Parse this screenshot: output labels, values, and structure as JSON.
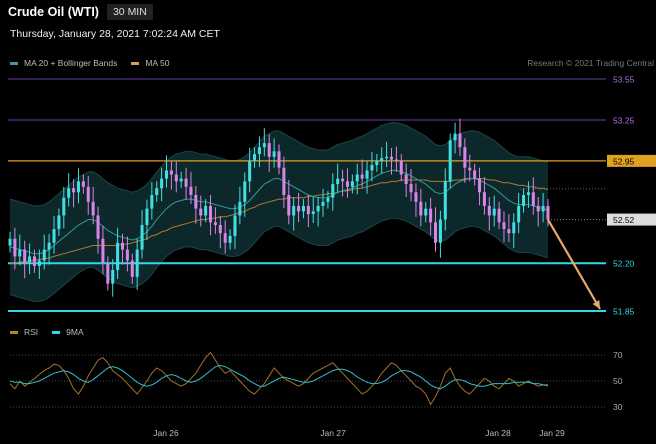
{
  "header": {
    "title": "Crude Oil (WTI)",
    "timeframe": "30 MIN",
    "datetime": "Thursday, January 28, 2021 7:02:24 AM CET"
  },
  "legend_top": [
    {
      "label": "MA 20 + Bollinger Bands",
      "color": "#3a9ea0"
    },
    {
      "label": "MA 50",
      "color": "#d99a52"
    }
  ],
  "legend_bottom": [
    {
      "label": "RSI",
      "color": "#b8860b"
    },
    {
      "label": "9MA",
      "color": "#33d6e6"
    }
  ],
  "copyright": "Research © 2021 Trading Central",
  "colors": {
    "up": "#40e0e0",
    "down": "#d884e8",
    "resistance": "#6a3fa8",
    "ma50_level": "#e0a020",
    "support": "#30d8e8",
    "arrow": "#e8a868",
    "band_fill": "#0e2a2c",
    "ma20": "#2f9a9c",
    "ma50": "#b07838",
    "rsi": "#a0702a",
    "rsi9": "#33bcd0"
  },
  "chart_data": [
    {
      "type": "candlestick",
      "title": "Crude Oil (WTI)",
      "timeframe": "30 MIN",
      "ylim": [
        51.8,
        53.6
      ],
      "x_ticks": [
        "Jan 26",
        "Jan 27",
        "Jan 28",
        "Jan 29"
      ],
      "price_levels": [
        {
          "value": 53.55,
          "label": "53.55",
          "kind": "resistance"
        },
        {
          "value": 53.25,
          "label": "53.25",
          "kind": "resistance"
        },
        {
          "value": 52.95,
          "label": "52.95",
          "kind": "ma50_level"
        },
        {
          "value": 52.52,
          "label": "52.52",
          "kind": "last"
        },
        {
          "value": 52.2,
          "label": "52.20",
          "kind": "support"
        },
        {
          "value": 51.85,
          "label": "51.85",
          "kind": "support"
        }
      ],
      "forecast": {
        "from": 52.52,
        "to": 51.85
      },
      "closes": [
        52.38,
        52.25,
        52.3,
        52.2,
        52.25,
        52.18,
        52.22,
        52.3,
        52.35,
        52.45,
        52.55,
        52.68,
        52.75,
        52.72,
        52.8,
        52.76,
        52.65,
        52.55,
        52.38,
        52.2,
        52.05,
        52.15,
        52.35,
        52.3,
        52.22,
        52.1,
        52.3,
        52.48,
        52.6,
        52.7,
        52.75,
        52.82,
        52.88,
        52.85,
        52.8,
        52.82,
        52.76,
        52.7,
        52.6,
        52.55,
        52.62,
        52.5,
        52.48,
        52.42,
        52.35,
        52.4,
        52.55,
        52.65,
        52.8,
        52.95,
        53.0,
        53.05,
        53.08,
        52.98,
        53.02,
        52.9,
        52.7,
        52.55,
        52.62,
        52.58,
        52.62,
        52.56,
        52.58,
        52.62,
        52.65,
        52.68,
        52.78,
        52.82,
        52.8,
        52.76,
        52.8,
        52.85,
        52.82,
        52.88,
        52.92,
        52.95,
        52.97,
        52.98,
        52.96,
        52.95,
        52.85,
        52.78,
        52.72,
        52.65,
        52.55,
        52.6,
        52.5,
        52.35,
        52.52,
        52.8,
        53.1,
        53.15,
        53.05,
        52.9,
        52.88,
        52.82,
        52.72,
        52.62,
        52.55,
        52.6,
        52.5,
        52.45,
        52.42,
        52.5,
        52.62,
        52.7,
        52.72,
        52.62,
        52.58,
        52.62,
        52.52
      ],
      "ma20": [
        52.32,
        52.31,
        52.3,
        52.29,
        52.28,
        52.27,
        52.27,
        52.28,
        52.3,
        52.33,
        52.36,
        52.39,
        52.42,
        52.45,
        52.48,
        52.5,
        52.52,
        52.52,
        52.5,
        52.47,
        52.44,
        52.42,
        52.4,
        52.39,
        52.38,
        52.37,
        52.38,
        52.4,
        52.43,
        52.47,
        52.52,
        52.56,
        52.6,
        52.63,
        52.65,
        52.66,
        52.67,
        52.67,
        52.66,
        52.65,
        52.65,
        52.64,
        52.63,
        52.62,
        52.61,
        52.6,
        52.6,
        52.61,
        52.63,
        52.66,
        52.7,
        52.74,
        52.78,
        52.8,
        52.82,
        52.82,
        52.8,
        52.78,
        52.76,
        52.74,
        52.72,
        52.7,
        52.69,
        52.68,
        52.68,
        52.68,
        52.7,
        52.72,
        52.73,
        52.74,
        52.75,
        52.77,
        52.78,
        52.8,
        52.82,
        52.84,
        52.86,
        52.87,
        52.88,
        52.88,
        52.87,
        52.86,
        52.84,
        52.82,
        52.8,
        52.78,
        52.75,
        52.72,
        52.71,
        52.72,
        52.75,
        52.78,
        52.8,
        52.81,
        52.82,
        52.82,
        52.81,
        52.79,
        52.77,
        52.75,
        52.72,
        52.69,
        52.66,
        52.64,
        52.63,
        52.63,
        52.63,
        52.62,
        52.61,
        52.6,
        52.59
      ],
      "ma50": [
        52.2,
        52.2,
        52.21,
        52.21,
        52.22,
        52.22,
        52.23,
        52.23,
        52.24,
        52.25,
        52.26,
        52.27,
        52.28,
        52.29,
        52.3,
        52.31,
        52.32,
        52.33,
        52.33,
        52.33,
        52.33,
        52.33,
        52.33,
        52.34,
        52.34,
        52.35,
        52.36,
        52.37,
        52.38,
        52.4,
        52.41,
        52.43,
        52.44,
        52.46,
        52.47,
        52.48,
        52.49,
        52.5,
        52.51,
        52.52,
        52.52,
        52.53,
        52.53,
        52.54,
        52.54,
        52.55,
        52.56,
        52.57,
        52.58,
        52.6,
        52.61,
        52.63,
        52.64,
        52.65,
        52.66,
        52.67,
        52.67,
        52.68,
        52.68,
        52.68,
        52.68,
        52.69,
        52.69,
        52.7,
        52.7,
        52.71,
        52.71,
        52.72,
        52.73,
        52.73,
        52.74,
        52.75,
        52.75,
        52.76,
        52.77,
        52.78,
        52.79,
        52.79,
        52.8,
        52.8,
        52.81,
        52.81,
        52.81,
        52.81,
        52.81,
        52.81,
        52.8,
        52.8,
        52.8,
        52.8,
        52.8,
        52.81,
        52.81,
        52.82,
        52.82,
        52.82,
        52.82,
        52.82,
        52.81,
        52.81,
        52.8,
        52.79,
        52.79,
        52.78,
        52.77,
        52.77,
        52.76,
        52.76,
        52.75,
        52.75,
        52.74
      ],
      "band_width": 0.35
    },
    {
      "type": "line",
      "title": "RSI",
      "ylim": [
        20,
        80
      ],
      "y_ticks": [
        70,
        50,
        30
      ],
      "series": [
        {
          "name": "RSI",
          "values": [
            48,
            44,
            50,
            46,
            49,
            52,
            55,
            58,
            60,
            63,
            62,
            58,
            52,
            44,
            40,
            46,
            54,
            60,
            66,
            68,
            64,
            58,
            55,
            52,
            48,
            44,
            40,
            45,
            50,
            56,
            60,
            58,
            54,
            50,
            48,
            46,
            48,
            52,
            56,
            62,
            68,
            72,
            66,
            60,
            56,
            58,
            54,
            50,
            46,
            42,
            40,
            44,
            48,
            54,
            60,
            56,
            52,
            50,
            48,
            46,
            48,
            52,
            56,
            58,
            60,
            62,
            64,
            60,
            56,
            52,
            48,
            44,
            40,
            42,
            46,
            50,
            56,
            60,
            64,
            62,
            58,
            54,
            50,
            46,
            44,
            40,
            32,
            38,
            46,
            56,
            60,
            52,
            46,
            42,
            40,
            44,
            48,
            52,
            50,
            46,
            44,
            48,
            52,
            50,
            46,
            48,
            50,
            48,
            46,
            47,
            46
          ]
        },
        {
          "name": "9MA",
          "values": [
            50,
            49,
            49,
            48,
            48,
            49,
            50,
            52,
            54,
            56,
            57,
            58,
            57,
            55,
            52,
            50,
            49,
            51,
            54,
            57,
            60,
            61,
            60,
            58,
            55,
            52,
            49,
            47,
            46,
            47,
            49,
            52,
            54,
            55,
            54,
            52,
            50,
            49,
            50,
            52,
            55,
            58,
            61,
            62,
            61,
            59,
            57,
            55,
            53,
            50,
            48,
            46,
            46,
            48,
            50,
            52,
            53,
            52,
            51,
            50,
            49,
            49,
            50,
            52,
            54,
            56,
            58,
            59,
            59,
            58,
            56,
            53,
            51,
            49,
            48,
            48,
            49,
            51,
            54,
            56,
            58,
            58,
            57,
            55,
            53,
            50,
            47,
            45,
            44,
            46,
            49,
            51,
            51,
            50,
            48,
            47,
            46,
            46,
            47,
            48,
            48,
            48,
            48,
            49,
            49,
            49,
            49,
            48,
            48,
            47,
            47
          ]
        }
      ]
    }
  ]
}
